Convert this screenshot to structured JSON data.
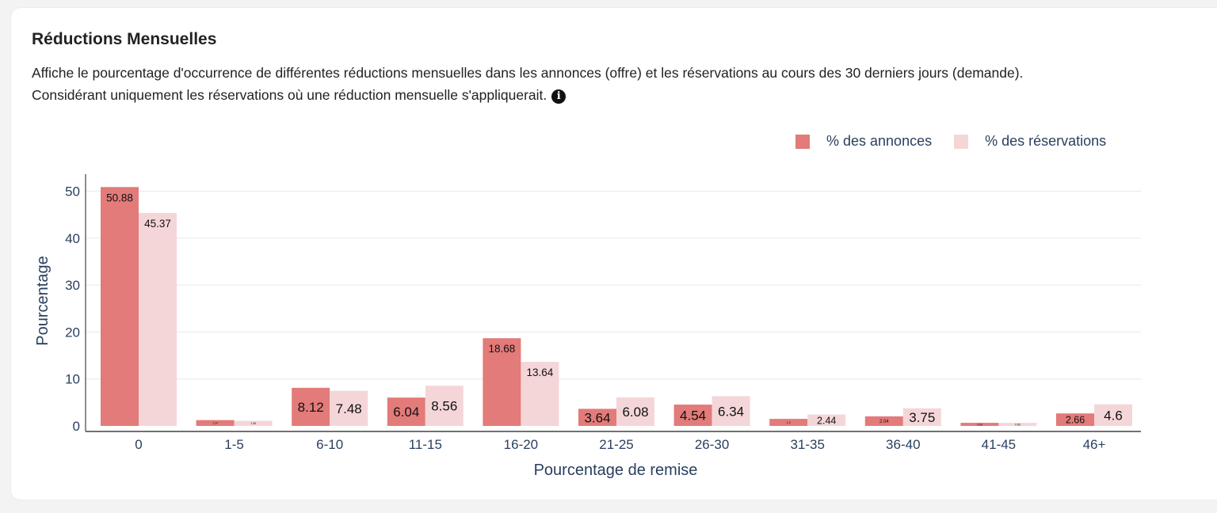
{
  "header": {
    "title": "Réductions Mensuelles",
    "description_line1": "Affiche le pourcentage d'occurrence de différentes réductions mensuelles dans les annonces (offre) et les réservations au cours des 30 derniers jours (demande).",
    "description_line2": "Considérant uniquement les réservations où une réduction mensuelle s'appliquerait.",
    "info_icon": "info-icon"
  },
  "colors": {
    "annonces": "#e27b79",
    "reservations": "#f5d6d8",
    "axis_text": "#2a3f5f",
    "grid": "#e8e8e8"
  },
  "chart_data": {
    "type": "bar",
    "categories": [
      "0",
      "1-5",
      "6-10",
      "11-15",
      "16-20",
      "21-25",
      "26-30",
      "31-35",
      "36-40",
      "41-45",
      "46+"
    ],
    "series": [
      {
        "name": "% des annonces",
        "values": [
          50.88,
          1.24,
          8.12,
          6.04,
          18.68,
          3.64,
          4.54,
          1.5,
          2.04,
          0.66,
          2.66
        ]
      },
      {
        "name": "% des réservations",
        "values": [
          45.37,
          1.08,
          7.48,
          8.56,
          13.64,
          6.08,
          6.34,
          2.44,
          3.75,
          0.65,
          4.6
        ]
      }
    ],
    "xlabel": "Pourcentage de remise",
    "ylabel": "Pourcentage",
    "ylim": [
      0,
      54
    ],
    "yticks": [
      0,
      10,
      20,
      30,
      40,
      50
    ],
    "grid": true,
    "legend_position": "top-right"
  }
}
